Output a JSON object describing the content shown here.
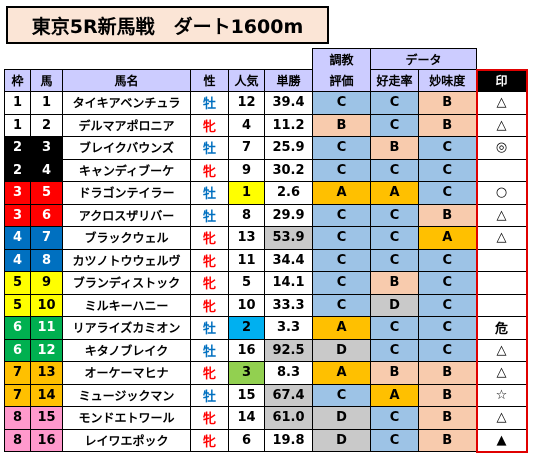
{
  "title": "東京5R新馬戦　ダート1600m",
  "headers": {
    "chokyo_top": "調教",
    "chokyo_bottom": "評価",
    "data_group": "データ",
    "waku": "枠",
    "uma": "馬",
    "bamei": "馬名",
    "sei": "性",
    "ninki": "人気",
    "tansho": "単勝",
    "kousou": "好走率",
    "myomi": "妙味度",
    "shirushi": "印"
  },
  "colors": {
    "header_bg": "#ccccff",
    "blue_cell": "#9dc3e6",
    "orange_cell": "#f8cbad",
    "grade_A": "#ffc000",
    "grade_B": "#f8cbad",
    "grade_C": "#9dc3e6",
    "grade_D": "#c9c9c9",
    "colt": "#0070c0",
    "filly": "#ff0000",
    "odds_gray": "#c9c9c9",
    "ninki1": "#ffff00",
    "ninki2": "#00b0f0",
    "ninki3": "#92d050",
    "waku_colors": {
      "1": {
        "bg": "#ffffff",
        "fg": "#000000"
      },
      "2": {
        "bg": "#000000",
        "fg": "#ffffff"
      },
      "3": {
        "bg": "#ff0000",
        "fg": "#ffffff"
      },
      "4": {
        "bg": "#0070c0",
        "fg": "#ffffff"
      },
      "5": {
        "bg": "#ffff00",
        "fg": "#000000"
      },
      "6": {
        "bg": "#00b050",
        "fg": "#ffffff"
      },
      "7": {
        "bg": "#ffc000",
        "fg": "#000000"
      },
      "8": {
        "bg": "#ff99cc",
        "fg": "#000000"
      }
    }
  },
  "rows": [
    {
      "waku": "1",
      "uma": "1",
      "name": "タイキアベンチュラ",
      "sex": "牡",
      "ninki": "12",
      "odds": "39.4",
      "oddsGray": false,
      "chokyo": "C",
      "kousou": "C",
      "myomi": "B",
      "mark": "△"
    },
    {
      "waku": "1",
      "uma": "2",
      "name": "デルマアポロニア",
      "sex": "牝",
      "ninki": "4",
      "odds": "11.2",
      "oddsGray": false,
      "chokyo": "B",
      "kousou": "C",
      "myomi": "B",
      "mark": "△"
    },
    {
      "waku": "2",
      "uma": "3",
      "name": "ブレイクバウンズ",
      "sex": "牡",
      "ninki": "7",
      "odds": "25.9",
      "oddsGray": false,
      "chokyo": "C",
      "kousou": "B",
      "myomi": "C",
      "mark": "◎"
    },
    {
      "waku": "2",
      "uma": "4",
      "name": "キャンディブーケ",
      "sex": "牝",
      "ninki": "9",
      "odds": "30.2",
      "oddsGray": false,
      "chokyo": "C",
      "kousou": "C",
      "myomi": "C",
      "mark": ""
    },
    {
      "waku": "3",
      "uma": "5",
      "name": "ドラゴンテイラー",
      "sex": "牡",
      "ninki": "1",
      "odds": "2.6",
      "oddsGray": false,
      "chokyo": "A",
      "kousou": "A",
      "myomi": "C",
      "mark": "○"
    },
    {
      "waku": "3",
      "uma": "6",
      "name": "アクロスザリバー",
      "sex": "牡",
      "ninki": "8",
      "odds": "29.9",
      "oddsGray": false,
      "chokyo": "C",
      "kousou": "C",
      "myomi": "B",
      "mark": "△"
    },
    {
      "waku": "4",
      "uma": "7",
      "name": "ブラックウェル",
      "sex": "牝",
      "ninki": "13",
      "odds": "53.9",
      "oddsGray": true,
      "chokyo": "C",
      "kousou": "C",
      "myomi": "A",
      "mark": "△"
    },
    {
      "waku": "4",
      "uma": "8",
      "name": "カツノトウウェルヴ",
      "sex": "牝",
      "ninki": "11",
      "odds": "34.4",
      "oddsGray": false,
      "chokyo": "C",
      "kousou": "C",
      "myomi": "C",
      "mark": ""
    },
    {
      "waku": "5",
      "uma": "9",
      "name": "ブランディストック",
      "sex": "牝",
      "ninki": "5",
      "odds": "14.1",
      "oddsGray": false,
      "chokyo": "C",
      "kousou": "B",
      "myomi": "C",
      "mark": ""
    },
    {
      "waku": "5",
      "uma": "10",
      "name": "ミルキーハニー",
      "sex": "牝",
      "ninki": "10",
      "odds": "33.3",
      "oddsGray": false,
      "chokyo": "C",
      "kousou": "D",
      "myomi": "C",
      "mark": ""
    },
    {
      "waku": "6",
      "uma": "11",
      "name": "リアライズカミオン",
      "sex": "牡",
      "ninki": "2",
      "odds": "3.3",
      "oddsGray": false,
      "chokyo": "A",
      "kousou": "C",
      "myomi": "C",
      "mark": "危"
    },
    {
      "waku": "6",
      "uma": "12",
      "name": "キタノブレイク",
      "sex": "牡",
      "ninki": "16",
      "odds": "92.5",
      "oddsGray": true,
      "chokyo": "D",
      "kousou": "C",
      "myomi": "C",
      "mark": "△"
    },
    {
      "waku": "7",
      "uma": "13",
      "name": "オーケーマヒナ",
      "sex": "牝",
      "ninki": "3",
      "odds": "8.3",
      "oddsGray": false,
      "chokyo": "A",
      "kousou": "B",
      "myomi": "B",
      "mark": "△"
    },
    {
      "waku": "7",
      "uma": "14",
      "name": "ミュージックマン",
      "sex": "牡",
      "ninki": "15",
      "odds": "67.4",
      "oddsGray": true,
      "chokyo": "C",
      "kousou": "A",
      "myomi": "B",
      "mark": "☆"
    },
    {
      "waku": "8",
      "uma": "15",
      "name": "モンドエトワール",
      "sex": "牝",
      "ninki": "14",
      "odds": "61.0",
      "oddsGray": true,
      "chokyo": "D",
      "kousou": "C",
      "myomi": "B",
      "mark": "△"
    },
    {
      "waku": "8",
      "uma": "16",
      "name": "レイワエポック",
      "sex": "牝",
      "ninki": "6",
      "odds": "19.8",
      "oddsGray": false,
      "chokyo": "D",
      "kousou": "C",
      "myomi": "B",
      "mark": "▲"
    }
  ]
}
